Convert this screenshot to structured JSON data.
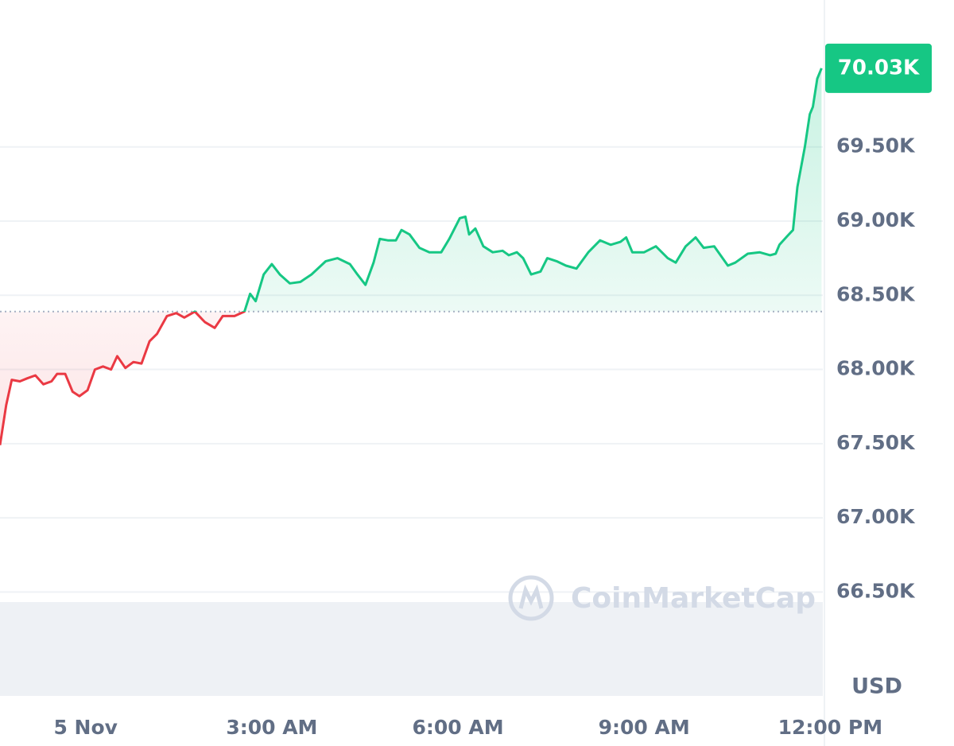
{
  "chart_data": {
    "type": "line",
    "x": [
      -1.38,
      -1.28,
      -1.19,
      -1.06,
      -0.94,
      -0.81,
      -0.68,
      -0.55,
      -0.46,
      -0.33,
      -0.21,
      -0.1,
      0.03,
      0.15,
      0.28,
      0.41,
      0.51,
      0.64,
      0.77,
      0.9,
      1.03,
      1.15,
      1.31,
      1.46,
      1.59,
      1.76,
      1.92,
      2.08,
      2.21,
      2.4,
      2.56,
      2.65,
      2.74,
      2.87,
      3.0,
      3.13,
      3.29,
      3.46,
      3.64,
      3.87,
      4.06,
      4.26,
      4.38,
      4.51,
      4.64,
      4.74,
      4.87,
      5.0,
      5.09,
      5.22,
      5.38,
      5.54,
      5.73,
      5.86,
      6.03,
      6.12,
      6.18,
      6.28,
      6.41,
      6.56,
      6.72,
      6.82,
      6.95,
      7.05,
      7.18,
      7.33,
      7.44,
      7.59,
      7.74,
      7.91,
      8.1,
      8.29,
      8.46,
      8.62,
      8.71,
      8.81,
      9.0,
      9.19,
      9.38,
      9.51,
      9.67,
      9.83,
      9.96,
      10.13,
      10.35,
      10.47,
      10.67,
      10.86,
      11.03,
      11.12,
      11.18,
      11.31,
      11.4,
      11.47,
      11.59,
      11.67,
      11.72,
      11.79,
      11.86
    ],
    "values": [
      67490,
      67760,
      67930,
      67920,
      67940,
      67960,
      67900,
      67920,
      67970,
      67970,
      67850,
      67820,
      67860,
      68000,
      68020,
      68000,
      68090,
      68010,
      68050,
      68040,
      68190,
      68240,
      68360,
      68380,
      68350,
      68390,
      68320,
      68280,
      68360,
      68360,
      68390,
      68510,
      68460,
      68640,
      68710,
      68640,
      68580,
      68590,
      68640,
      68730,
      68750,
      68710,
      68640,
      68570,
      68720,
      68880,
      68870,
      68870,
      68940,
      68910,
      68820,
      68790,
      68790,
      68880,
      69020,
      69030,
      68910,
      68950,
      68830,
      68790,
      68800,
      68770,
      68790,
      68750,
      68640,
      68660,
      68750,
      68730,
      68700,
      68680,
      68790,
      68870,
      68840,
      68860,
      68890,
      68790,
      68790,
      68830,
      68750,
      68720,
      68830,
      68890,
      68820,
      68830,
      68700,
      68720,
      68780,
      68790,
      68770,
      68780,
      68840,
      68900,
      68940,
      69230,
      69500,
      69720,
      69770,
      69960,
      70030
    ],
    "colors": {
      "above": "#16c784",
      "below": "#ea3943"
    },
    "baseline": 68390,
    "last_value": {
      "value": 70030,
      "label": "70.03K"
    },
    "currency": "USD",
    "watermark": "CoinMarketCap",
    "xlim": [
      -1.38,
      11.88
    ],
    "ylim": [
      65800,
      70490
    ],
    "xticks": [
      {
        "value": 0,
        "label": "5 Nov"
      },
      {
        "value": 3,
        "label": "3:00 AM"
      },
      {
        "value": 6,
        "label": "6:00 AM"
      },
      {
        "value": 9,
        "label": "9:00 AM"
      },
      {
        "value": 12,
        "label": "12:00 PM"
      }
    ],
    "yticks": [
      {
        "value": 66500,
        "label": "66.50K"
      },
      {
        "value": 67000,
        "label": "67.00K"
      },
      {
        "value": 67500,
        "label": "67.50K"
      },
      {
        "value": 68000,
        "label": "68.00K"
      },
      {
        "value": 68500,
        "label": "68.50K"
      },
      {
        "value": 69000,
        "label": "69.00K"
      },
      {
        "value": 69500,
        "label": "69.50K"
      }
    ],
    "grid": true
  }
}
